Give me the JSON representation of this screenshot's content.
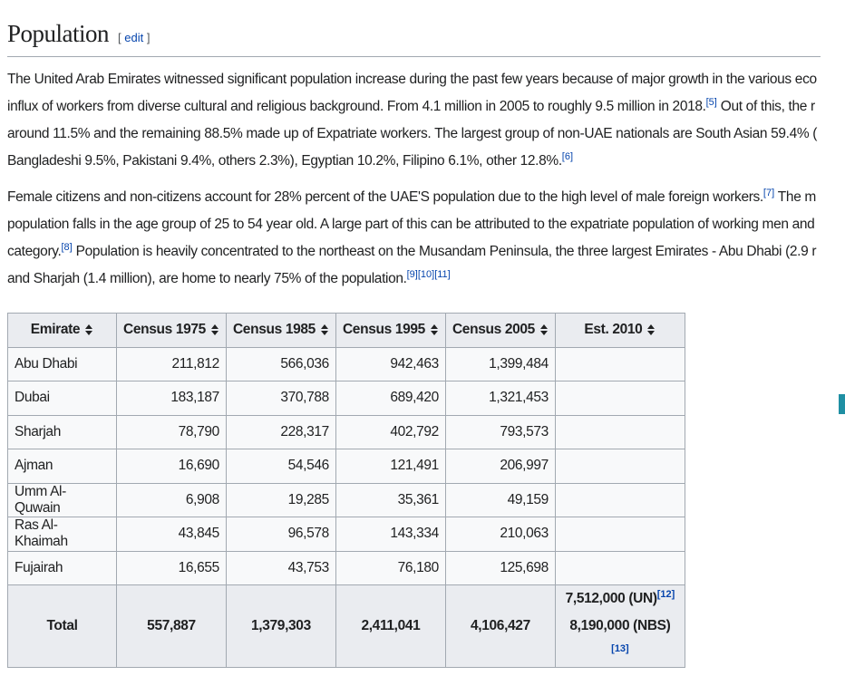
{
  "heading": {
    "title": "Population",
    "edit": "edit"
  },
  "paragraphs": [
    {
      "lines": [
        [
          {
            "text": "The United Arab Emirates witnessed significant population increase during the past few years because of major growth in the various eco"
          }
        ],
        [
          {
            "text": "influx of workers from diverse cultural and religious background. From 4.1 million in 2005 to roughly 9.5 million in 2018."
          },
          {
            "ref": "[5]"
          },
          {
            "text": " Out of this, the r"
          }
        ],
        [
          {
            "text": "around 11.5% and the remaining 88.5% made up of Expatriate workers. The largest group of non-UAE nationals are South Asian 59.4% ("
          }
        ],
        [
          {
            "text": "Bangladeshi 9.5%, Pakistani 9.4%, others 2.3%), Egyptian 10.2%, Filipino 6.1%, other 12.8%."
          },
          {
            "ref": "[6]"
          }
        ]
      ]
    },
    {
      "lines": [
        [
          {
            "text": "Female citizens and non-citizens account for 28% percent of the UAE'S population due to the high level of male foreign workers."
          },
          {
            "ref": "[7]"
          },
          {
            "text": " The m"
          }
        ],
        [
          {
            "text": "population falls in the age group of 25 to 54 year old. A large part of this can be attributed to the expatriate population of working men and"
          }
        ],
        [
          {
            "text": "category."
          },
          {
            "ref": "[8]"
          },
          {
            "text": " Population is heavily concentrated to the northeast on the Musandam Peninsula, the three largest Emirates - Abu Dhabi (2.9 r"
          }
        ],
        [
          {
            "text": "and Sharjah (1.4 million), are home to nearly 75% of the population."
          },
          {
            "ref": "[9][10][11]"
          }
        ]
      ]
    }
  ],
  "table": {
    "headers": [
      "Emirate",
      "Census 1975",
      "Census 1985",
      "Census 1995",
      "Census 2005",
      "Est. 2010"
    ],
    "rows": [
      [
        "Abu Dhabi",
        "211,812",
        "566,036",
        "942,463",
        "1,399,484"
      ],
      [
        "Dubai",
        "183,187",
        "370,788",
        "689,420",
        "1,321,453"
      ],
      [
        "Sharjah",
        "78,790",
        "228,317",
        "402,792",
        "793,573"
      ],
      [
        "Ajman",
        "16,690",
        "54,546",
        "121,491",
        "206,997"
      ],
      [
        "Umm Al-Quwain",
        "6,908",
        "19,285",
        "35,361",
        "49,159"
      ],
      [
        "Ras Al-Khaimah",
        "43,845",
        "96,578",
        "143,334",
        "210,063"
      ],
      [
        "Fujairah",
        "16,655",
        "43,753",
        "76,180",
        "125,698"
      ]
    ],
    "total": {
      "cells": [
        "Total",
        "557,887",
        "1,379,303",
        "2,411,041",
        "4,106,427"
      ],
      "estimates": [
        {
          "text": "7,512,000 (UN)",
          "ref": "[12]"
        },
        {
          "text": "8,190,000 (NBS)",
          "ref": "[13]"
        }
      ]
    }
  }
}
